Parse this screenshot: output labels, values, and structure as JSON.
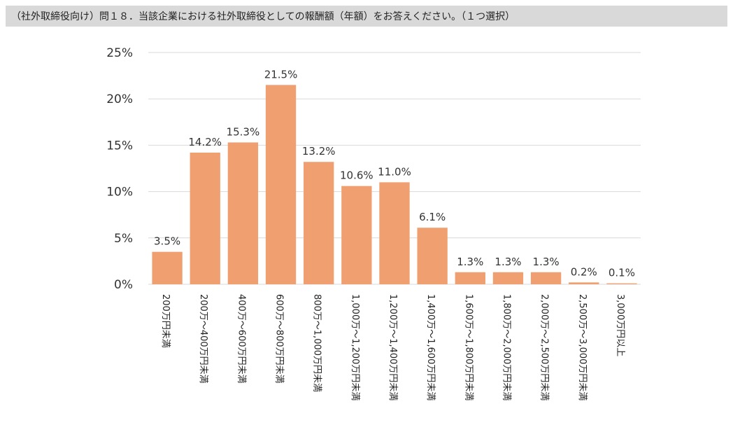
{
  "header": {
    "question": "（社外取締役向け）問１８．当該企業における社外取締役としての報酬額（年額）をお答えください。（１つ選択）"
  },
  "colors": {
    "bar": "#f0a070",
    "grid": "#d9d9d9",
    "header_bg": "#d9d9d9"
  },
  "chart_data": {
    "type": "bar",
    "title": "",
    "xlabel": "",
    "ylabel": "",
    "ylim": [
      0,
      25
    ],
    "yticks": [
      0,
      5,
      10,
      15,
      20,
      25
    ],
    "ytick_labels": [
      "0%",
      "5%",
      "10%",
      "15%",
      "20%",
      "25%"
    ],
    "grid": true,
    "categories": [
      "200万円未満",
      "200万～400万円未満",
      "400万～600万円未満",
      "600万～800万円未満",
      "800万～1,000万円未満",
      "1,000万～1,200万円未満",
      "1,200万～1,400万円未満",
      "1,400万～1,600万円未満",
      "1,600万～1,800万円未満",
      "1,800万～2,000万円未満",
      "2,000万～2,500万円未満",
      "2,500万～3,000万円未満",
      "3,000万円以上"
    ],
    "values": [
      3.5,
      14.2,
      15.3,
      21.5,
      13.2,
      10.6,
      11.0,
      6.1,
      1.3,
      1.3,
      1.3,
      0.2,
      0.1
    ],
    "value_labels": [
      "3.5%",
      "14.2%",
      "15.3%",
      "21.5%",
      "13.2%",
      "10.6%",
      "11.0%",
      "6.1%",
      "1.3%",
      "1.3%",
      "1.3%",
      "0.2%",
      "0.1%"
    ]
  }
}
